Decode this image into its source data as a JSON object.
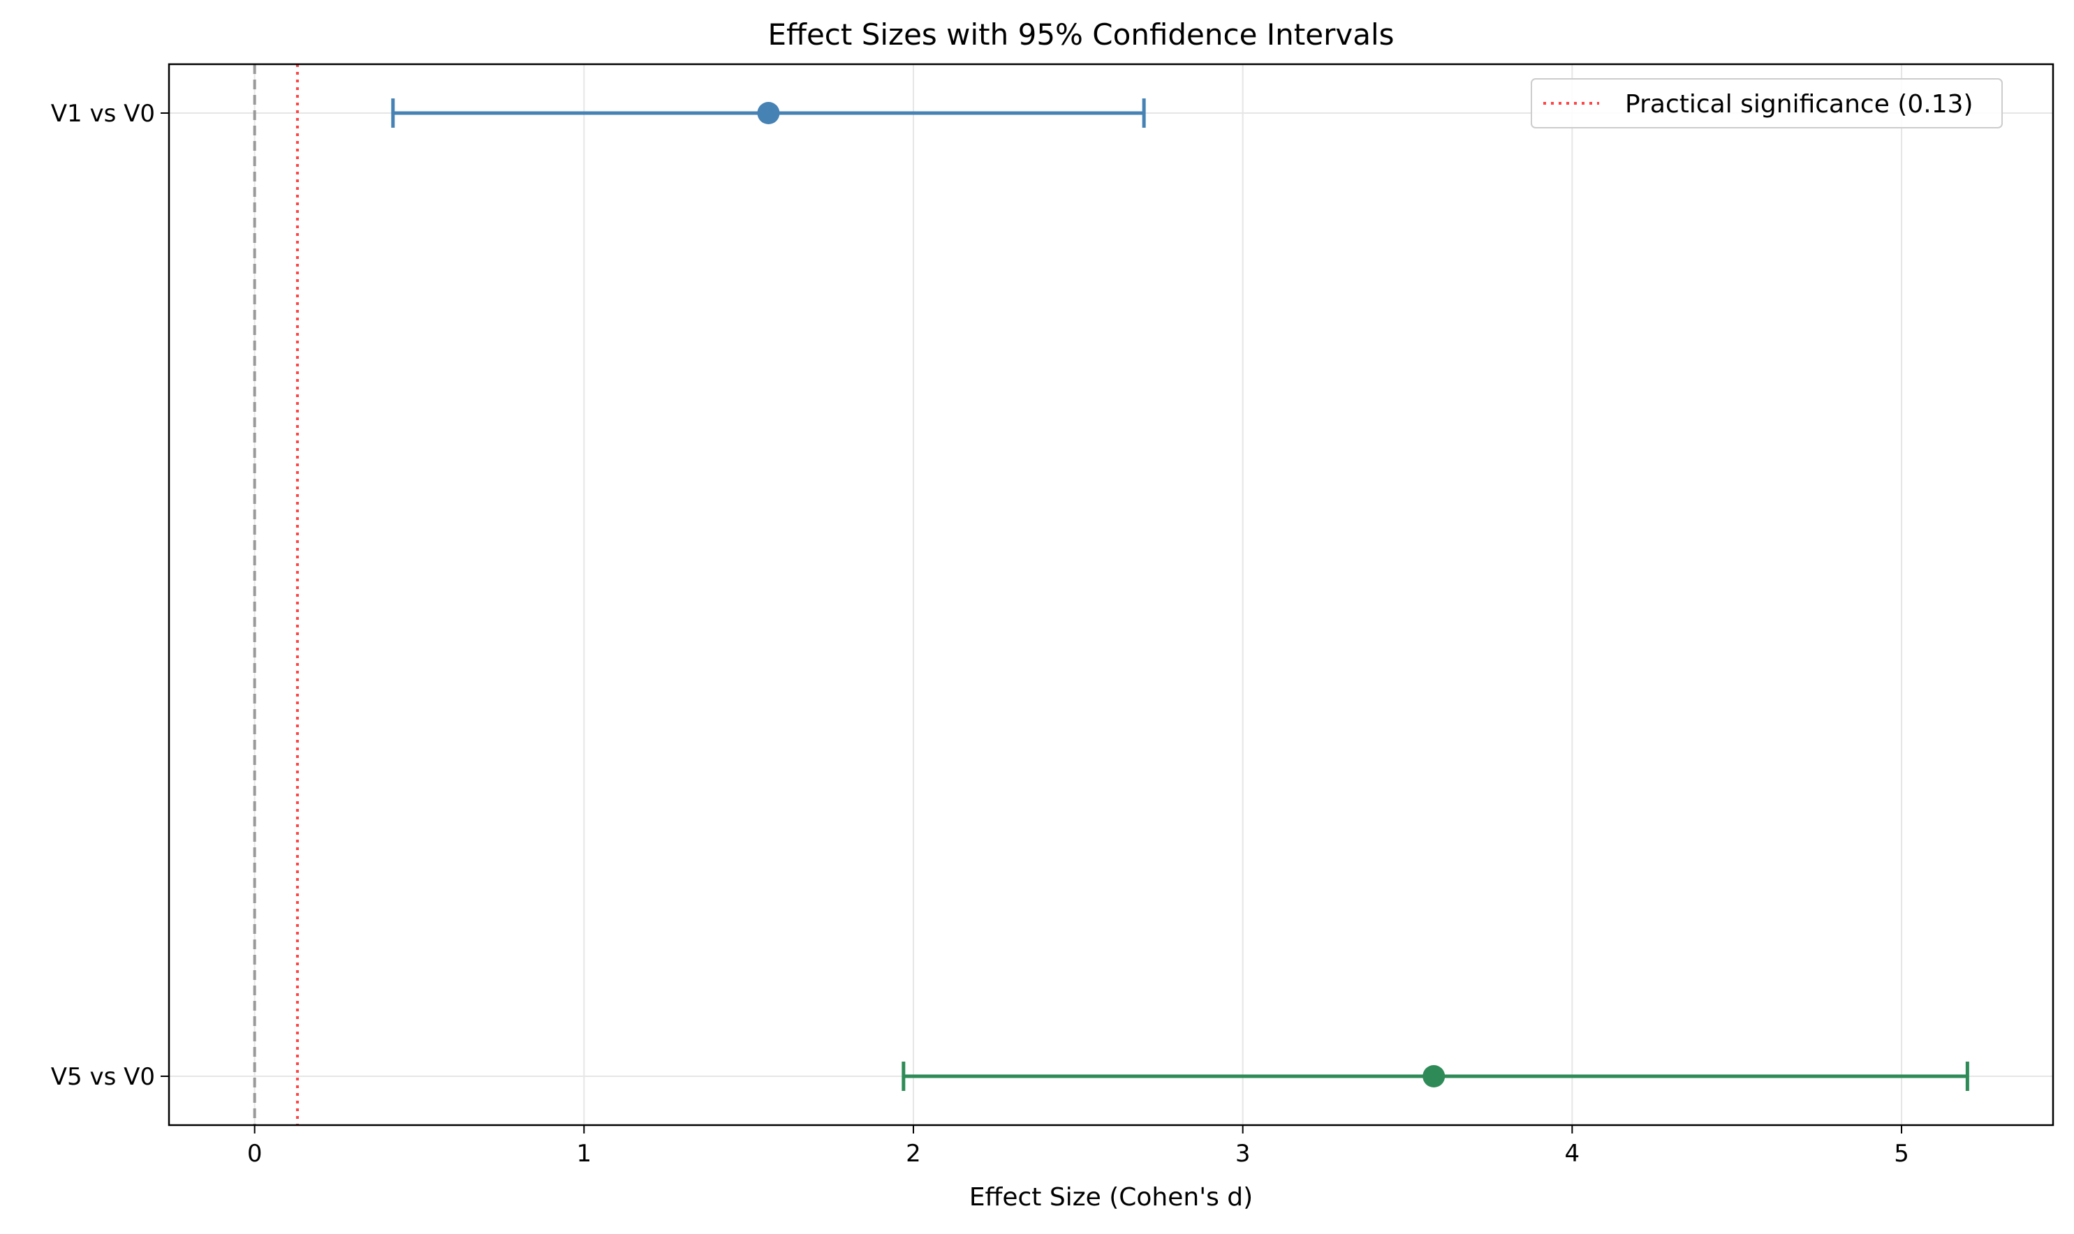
{
  "chart_data": {
    "type": "forest",
    "title": "Effect Sizes with 95% Confidence Intervals",
    "xlabel": "Effect Size (Cohen's d)",
    "ylabel": "",
    "xlim": [
      -0.26,
      5.46
    ],
    "xticks": [
      0,
      1,
      2,
      3,
      4,
      5
    ],
    "xtick_labels": [
      "0",
      "1",
      "2",
      "3",
      "4",
      "5"
    ],
    "grid": "x-and-y",
    "categories": [
      "V1 vs V0",
      "V5 vs V0"
    ],
    "series": [
      {
        "category": "V1 vs V0",
        "estimate": 1.56,
        "ci_low": 0.42,
        "ci_high": 2.7,
        "color": "#4682b4"
      },
      {
        "category": "V5 vs V0",
        "estimate": 3.58,
        "ci_low": 1.97,
        "ci_high": 5.2,
        "color": "#2e8b57"
      }
    ],
    "reference_lines": [
      {
        "value": 0,
        "style": "dashed",
        "color": "#999999"
      },
      {
        "value": 0.13,
        "style": "dotted",
        "color": "#ff4444",
        "label": "Practical significance (0.13)"
      }
    ],
    "legend": {
      "placement": "top-right",
      "entries": [
        "Practical significance (0.13)"
      ]
    }
  }
}
